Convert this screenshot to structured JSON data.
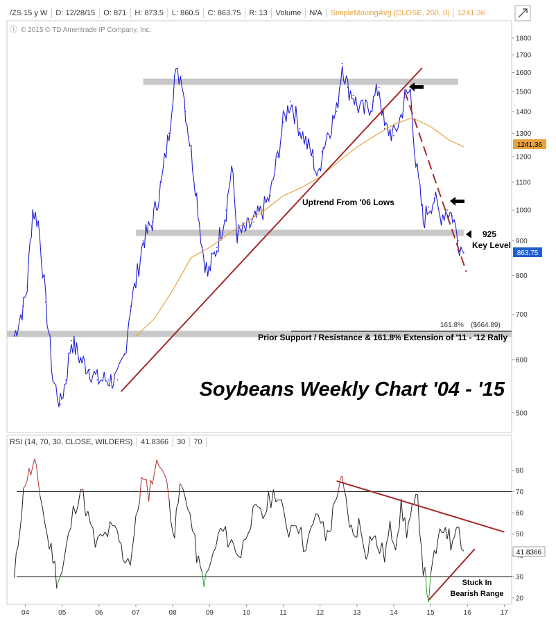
{
  "header": {
    "items": [
      "/ZS 15 y W",
      "D: 12/28/15",
      "O: 871",
      "H: 873.5",
      "L: 860.5",
      "C: 863.75",
      "R: 13",
      "Volume",
      "N/A"
    ],
    "study": "SimpleMovingAvg (CLOSE, 200, 0)",
    "study_value": "1241.36",
    "copyright": "© 2015 © TD Ameritrade IP Company, Inc."
  },
  "rsi_header": {
    "items": [
      "RSI (14, 70, 30, CLOSE, WILDERS)",
      "41.8366",
      "30",
      "70"
    ]
  },
  "colors": {
    "price": "#1f1fd1",
    "sma": "#e8a33d",
    "trendline": "#a52a2a",
    "band": "#c8c8c8",
    "rsi": "#222222",
    "rsi_overbought": "#b03030",
    "rsi_oversold": "#2e9e2e",
    "last_price_badge": "#1f5fd0",
    "sma_badge": "#e8a33d"
  },
  "chart_data": [
    {
      "type": "line",
      "title": "Soybeans Weekly Chart '04 - '15",
      "log_scale": true,
      "ylim": [
        470,
        1900
      ],
      "xlim": [
        2003.5,
        2017.2
      ],
      "y_ticks": [
        500,
        600,
        700,
        800,
        900,
        1000,
        1100,
        1200,
        1300,
        1400,
        1500,
        1600,
        1700,
        1800
      ],
      "x_tick_labels": [
        "04",
        "05",
        "06",
        "07",
        "08",
        "09",
        "10",
        "11",
        "12",
        "13",
        "14",
        "15",
        "16",
        "17"
      ],
      "x_tick_values": [
        2004,
        2005,
        2006,
        2007,
        2008,
        2009,
        2010,
        2011,
        2012,
        2013,
        2014,
        2015,
        2016,
        2017
      ],
      "series": [
        {
          "role": "price",
          "x": [
            2003.7,
            2003.95,
            2004.05,
            2004.2,
            2004.35,
            2004.55,
            2004.75,
            2004.95,
            2005.1,
            2005.25,
            2005.5,
            2005.75,
            2005.95,
            2006.25,
            2006.5,
            2006.7,
            2006.85,
            2007.0,
            2007.2,
            2007.45,
            2007.7,
            2007.9,
            2008.05,
            2008.25,
            2008.35,
            2008.5,
            2008.65,
            2008.8,
            2008.95,
            2009.2,
            2009.45,
            2009.6,
            2009.75,
            2009.95,
            2010.2,
            2010.45,
            2010.65,
            2010.85,
            2011.0,
            2011.2,
            2011.45,
            2011.65,
            2011.8,
            2011.95,
            2012.05,
            2012.2,
            2012.45,
            2012.6,
            2012.75,
            2012.9,
            2013.0,
            2013.2,
            2013.45,
            2013.6,
            2013.75,
            2013.9,
            2014.0,
            2014.2,
            2014.3,
            2014.45,
            2014.6,
            2014.75,
            2014.8,
            2014.95,
            2015.1,
            2015.25,
            2015.45,
            2015.6,
            2015.75,
            2015.9
          ],
          "y": [
            650,
            720,
            770,
            1000,
            960,
            730,
            560,
            515,
            560,
            640,
            600,
            580,
            560,
            560,
            560,
            610,
            720,
            780,
            900,
            960,
            1100,
            1300,
            1580,
            1580,
            1400,
            1220,
            1050,
            880,
            800,
            880,
            1000,
            1160,
            920,
            930,
            960,
            1000,
            1050,
            1200,
            1350,
            1450,
            1320,
            1250,
            1200,
            1110,
            1220,
            1300,
            1400,
            1650,
            1520,
            1480,
            1430,
            1400,
            1450,
            1520,
            1320,
            1310,
            1290,
            1380,
            1470,
            1500,
            1170,
            1020,
            960,
            1010,
            1040,
            980,
            1000,
            980,
            900,
            864
          ]
        },
        {
          "role": "sma",
          "name": "SimpleMovingAvg (CLOSE, 200, 0)",
          "x": [
            2007.0,
            2007.5,
            2008.0,
            2008.5,
            2009.0,
            2009.5,
            2010.0,
            2010.5,
            2011.0,
            2011.5,
            2012.0,
            2012.5,
            2013.0,
            2013.5,
            2014.0,
            2014.5,
            2015.0,
            2015.5,
            2015.9
          ],
          "y": [
            650,
            690,
            760,
            850,
            880,
            920,
            960,
            1000,
            1050,
            1080,
            1120,
            1180,
            1240,
            1290,
            1340,
            1370,
            1330,
            1270,
            1241.36
          ]
        }
      ],
      "trendlines": [
        {
          "style": "solid",
          "from": [
            2006.6,
            538
          ],
          "to": [
            2014.77,
            1625
          ]
        },
        {
          "style": "dashed",
          "from": [
            2014.3,
            1500
          ],
          "to": [
            2015.97,
            810
          ]
        }
      ],
      "bands": [
        {
          "value": 1550,
          "from_x": 2007.2,
          "to_x": 2015.75
        },
        {
          "value": 925,
          "from_x": 2007.0,
          "to_x": 2015.9
        },
        {
          "value": 655,
          "from_x": 2003.5,
          "to_x": 2017.2
        }
      ],
      "annotations": {
        "uptrend": "Uptrend From '06 Lows",
        "key_level_value": "925",
        "key_level_text": "Key Level",
        "fib_label": "161.8%",
        "fib_value": "($664.89)",
        "support_text": "Prior Support / Resistance & 161.8% Extension of '11 - '12 Rally"
      },
      "last_price": "863.75",
      "sma_last": "1241.36"
    },
    {
      "type": "line",
      "ylim": [
        17,
        90
      ],
      "y_ticks": [
        20,
        30,
        40,
        50,
        60,
        70,
        80
      ],
      "levels": [
        30,
        70
      ],
      "series": [
        {
          "role": "rsi",
          "x": [
            2003.7,
            2003.85,
            2004.0,
            2004.1,
            2004.25,
            2004.4,
            2004.6,
            2004.75,
            2004.85,
            2005.0,
            2005.1,
            2005.3,
            2005.5,
            2005.7,
            2005.9,
            2006.1,
            2006.3,
            2006.5,
            2006.65,
            2006.85,
            2007.0,
            2007.15,
            2007.35,
            2007.5,
            2007.7,
            2007.9,
            2008.05,
            2008.2,
            2008.4,
            2008.6,
            2008.75,
            2008.9,
            2009.1,
            2009.3,
            2009.5,
            2009.65,
            2009.85,
            2010.05,
            2010.25,
            2010.45,
            2010.6,
            2010.8,
            2010.95,
            2011.15,
            2011.35,
            2011.55,
            2011.75,
            2011.95,
            2012.15,
            2012.3,
            2012.45,
            2012.6,
            2012.75,
            2012.9,
            2013.05,
            2013.25,
            2013.4,
            2013.55,
            2013.75,
            2013.9,
            2014.05,
            2014.2,
            2014.35,
            2014.5,
            2014.65,
            2014.8,
            2014.95,
            2015.1,
            2015.25,
            2015.4,
            2015.55,
            2015.7,
            2015.9
          ],
          "y": [
            28,
            55,
            76,
            78,
            82,
            70,
            48,
            40,
            29,
            32,
            42,
            60,
            72,
            58,
            45,
            48,
            52,
            50,
            40,
            38,
            55,
            75,
            70,
            80,
            85,
            66,
            50,
            72,
            66,
            45,
            32,
            28,
            40,
            52,
            48,
            45,
            40,
            55,
            60,
            58,
            65,
            70,
            62,
            52,
            58,
            45,
            50,
            60,
            48,
            55,
            70,
            74,
            60,
            48,
            55,
            42,
            50,
            45,
            40,
            52,
            47,
            62,
            52,
            60,
            66,
            35,
            20,
            40,
            48,
            55,
            45,
            57,
            42
          ]
        }
      ],
      "trendlines": [
        {
          "style": "solid",
          "from": [
            2012.45,
            75
          ],
          "to": [
            2017.0,
            51
          ]
        },
        {
          "style": "solid",
          "from": [
            2014.95,
            19
          ],
          "to": [
            2016.2,
            43
          ]
        }
      ],
      "annotations": {
        "range_line1": "Stuck In",
        "range_line2": "Bearish Range"
      },
      "last_value": "41.8366"
    }
  ]
}
